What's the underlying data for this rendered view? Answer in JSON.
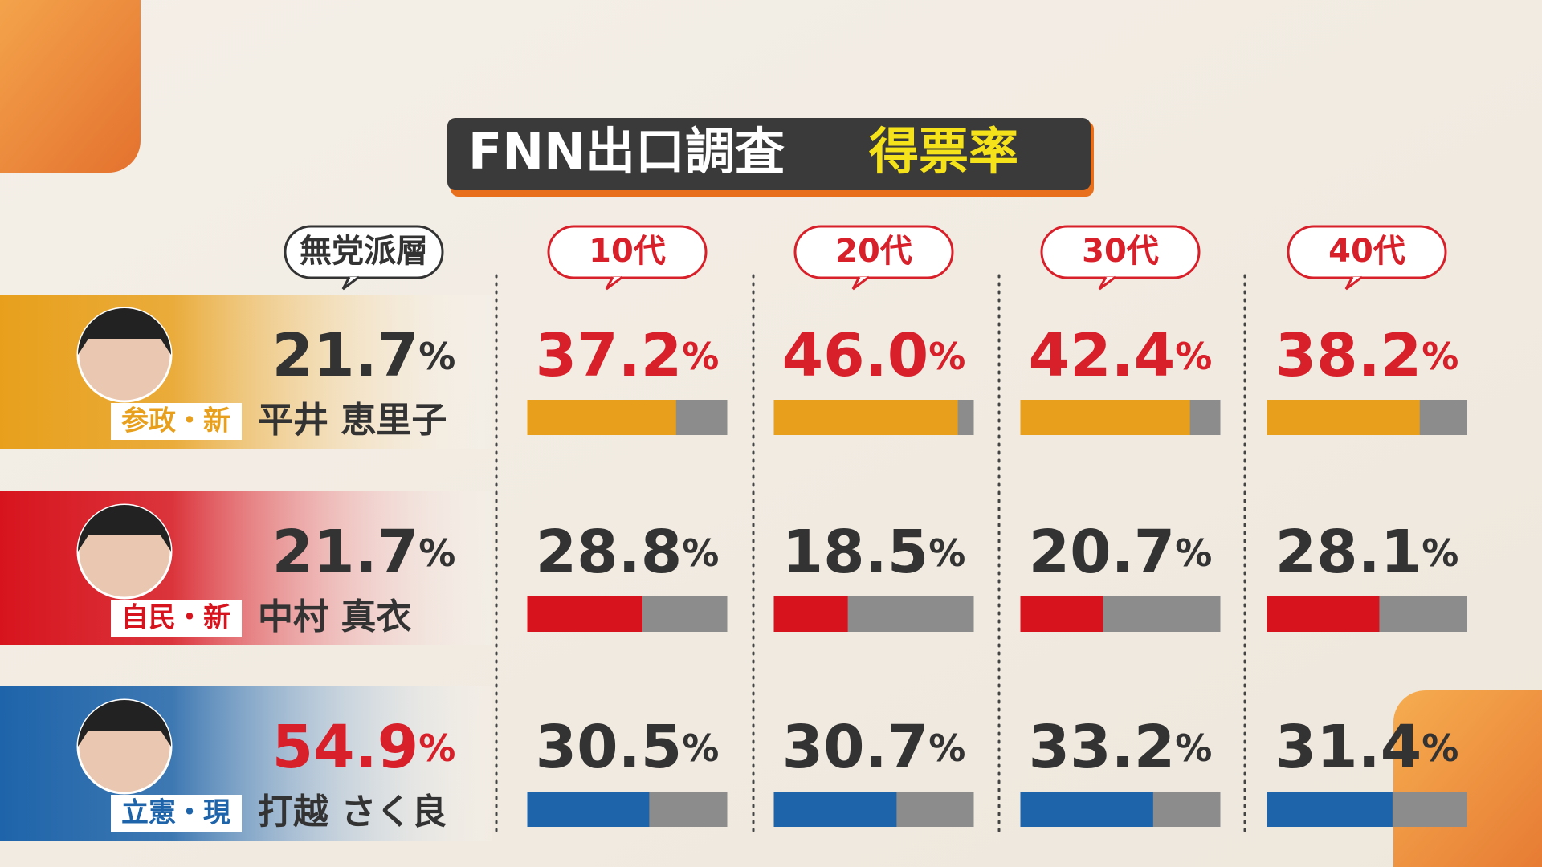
{
  "chart_data": {
    "type": "bar",
    "title": "FNN出口調査",
    "subtitle": "得票率",
    "reference_category": "無党派層",
    "categories": [
      "10代",
      "20代",
      "30代",
      "40代"
    ],
    "ylim": [
      0,
      50
    ],
    "track_color": "#8c8c8c",
    "series": [
      {
        "name": "平井 恵里子",
        "party": "参政・新",
        "color": "#e8a01c",
        "reference_value": 21.7,
        "reference_label": "21.7%",
        "values": [
          37.2,
          46.0,
          42.4,
          38.2
        ],
        "value_labels": [
          "37.2%",
          "46.0%",
          "42.4%",
          "38.2%"
        ]
      },
      {
        "name": "中村 真衣",
        "party": "自民・新",
        "color": "#d7141e",
        "reference_value": 21.7,
        "reference_label": "21.7%",
        "values": [
          28.8,
          18.5,
          20.7,
          28.1
        ],
        "value_labels": [
          "28.8%",
          "18.5%",
          "20.7%",
          "28.1%"
        ]
      },
      {
        "name": "打越 さく良",
        "party": "立憲・現",
        "color": "#1e64aa",
        "reference_value": 54.9,
        "reference_label": "54.9%",
        "values": [
          30.5,
          30.7,
          33.2,
          31.4
        ],
        "value_labels": [
          "30.5%",
          "30.7%",
          "33.2%",
          "31.4%"
        ]
      }
    ]
  }
}
